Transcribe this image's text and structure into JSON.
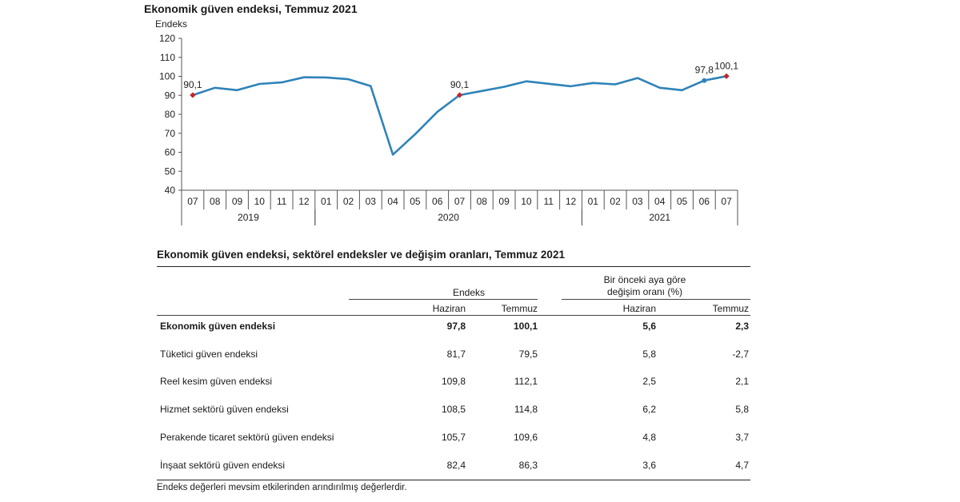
{
  "chart": {
    "title": "Ekonomik güven endeksi, Temmuz 2021"
  },
  "chart_data": {
    "type": "line",
    "ylabel": "Endeks",
    "ylim": [
      40,
      120
    ],
    "yticks": [
      "40",
      "50",
      "60",
      "70",
      "80",
      "90",
      "100",
      "110",
      "120"
    ],
    "x": [
      "07",
      "08",
      "09",
      "10",
      "11",
      "12",
      "01",
      "02",
      "03",
      "04",
      "05",
      "06",
      "07",
      "08",
      "09",
      "10",
      "11",
      "12",
      "01",
      "02",
      "03",
      "04",
      "05",
      "06",
      "07"
    ],
    "year_groups": [
      {
        "label": "2019",
        "start": 0,
        "end": 5
      },
      {
        "label": "2020",
        "start": 6,
        "end": 17
      },
      {
        "label": "2021",
        "start": 18,
        "end": 24
      }
    ],
    "series": [
      {
        "values": [
          90.1,
          94.0,
          92.7,
          96.0,
          96.8,
          99.5,
          99.4,
          98.5,
          94.9,
          58.8,
          69.5,
          81.3,
          90.1,
          92.3,
          94.5,
          97.4,
          96.1,
          94.8,
          96.5,
          95.8,
          99.1,
          94.0,
          92.7,
          97.8,
          100.1
        ]
      }
    ],
    "data_labels": [
      {
        "index": 0,
        "text": "90,1",
        "marker": "diamond"
      },
      {
        "index": 12,
        "text": "90,1",
        "marker": "diamond"
      },
      {
        "index": 23,
        "text": "97,8",
        "marker": "circle"
      },
      {
        "index": 24,
        "text": "100,1",
        "marker": "diamond"
      }
    ],
    "line_color": "#2f83b8",
    "marker_color": "#c0272d",
    "grid": false
  },
  "table": {
    "title": "Ekonomik güven endeksi, sektörel endeksler ve değişim oranları, Temmuz 2021",
    "group1": "Endeks",
    "group2_line1": "Bir önceki aya göre",
    "group2_line2": "değişim oranı (%)",
    "col_headers": [
      "Haziran",
      "Temmuz",
      "Haziran",
      "Temmuz"
    ],
    "rows": [
      {
        "label": "Ekonomik güven endeksi",
        "values": [
          "97,8",
          "100,1",
          "5,6",
          "2,3"
        ]
      },
      {
        "label": "Tüketici güven endeksi",
        "values": [
          "81,7",
          "79,5",
          "5,8",
          "-2,7"
        ]
      },
      {
        "label": "Reel kesim güven endeksi",
        "values": [
          "109,8",
          "112,1",
          "2,5",
          "2,1"
        ]
      },
      {
        "label": "Hizmet sektörü güven endeksi",
        "values": [
          "108,5",
          "114,8",
          "6,2",
          "5,8"
        ]
      },
      {
        "label": "Perakende ticaret sektörü güven endeksi",
        "values": [
          "105,7",
          "109,6",
          "4,8",
          "3,7"
        ]
      },
      {
        "label": "İnşaat sektörü güven endeksi",
        "values": [
          "82,4",
          "86,3",
          "3,6",
          "4,7"
        ]
      }
    ],
    "footnote": "Endeks değerleri mevsim etkilerinden arındırılmış değerlerdir."
  }
}
